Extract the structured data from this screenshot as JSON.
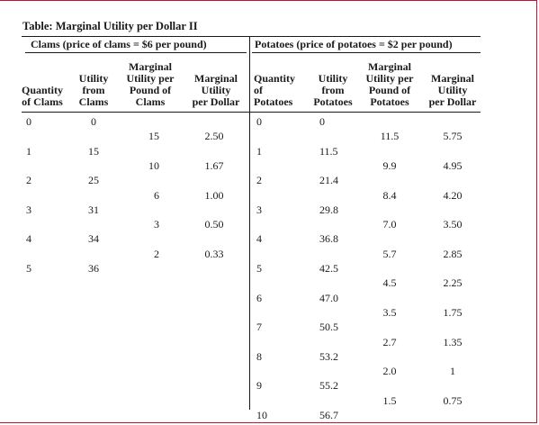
{
  "title": "Table: Marginal Utility per Dollar II",
  "clams": {
    "group_header": "Clams (price of clams = $6 per pound)",
    "col_quantity": "Quantity of Clams",
    "col_utility": "Utility from Clams",
    "col_mu_per_pound": "Marginal Utility per Pound of Clams",
    "col_mu_per_dollar": "Marginal Utility per Dollar",
    "quantity": [
      "0",
      "1",
      "2",
      "3",
      "4",
      "5"
    ],
    "utility": [
      "0",
      "15",
      "25",
      "31",
      "34",
      "36"
    ],
    "mu_per_pound": [
      "15",
      "10",
      "6",
      "3",
      "2"
    ],
    "mu_per_dollar": [
      "2.50",
      "1.67",
      "1.00",
      "0.50",
      "0.33"
    ]
  },
  "potatoes": {
    "group_header": "Potatoes (price of potatoes = $2 per pound)",
    "col_quantity": "Quantity of Potatoes",
    "col_utility": "Utility from Potatoes",
    "col_mu_per_pound": "Marginal Utility per Pound of Potatoes",
    "col_mu_per_dollar": "Marginal Utility per Dollar",
    "quantity": [
      "0",
      "1",
      "2",
      "3",
      "4",
      "5",
      "6",
      "7",
      "8",
      "9",
      "10"
    ],
    "utility": [
      "0",
      "11.5",
      "21.4",
      "29.8",
      "36.8",
      "42.5",
      "47.0",
      "50.5",
      "53.2",
      "55.2",
      "56.7"
    ],
    "mu_per_pound": [
      "11.5",
      "9.9",
      "8.4",
      "7.0",
      "5.7",
      "4.5",
      "3.5",
      "2.7",
      "2.0",
      "1.5"
    ],
    "mu_per_dollar": [
      "5.75",
      "4.95",
      "4.20",
      "3.50",
      "2.85",
      "2.25",
      "1.75",
      "1.35",
      "1",
      "0.75"
    ]
  },
  "colors": {
    "frame": "#c8102e",
    "text": "#1a1a1a"
  }
}
